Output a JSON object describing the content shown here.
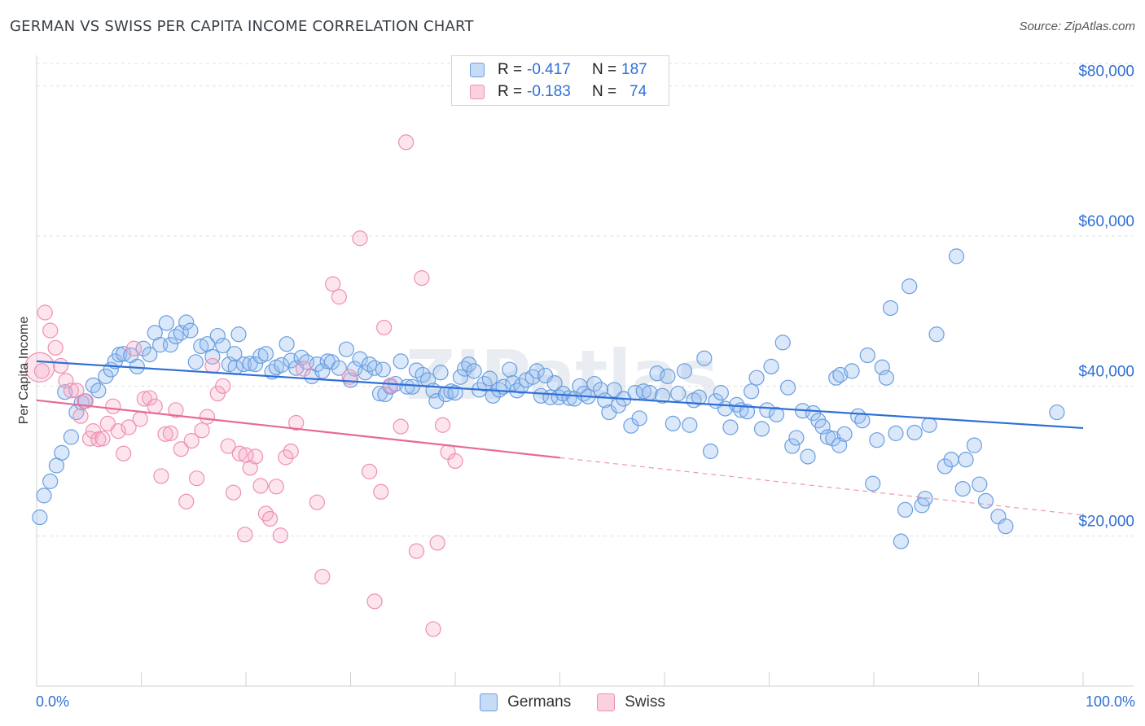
{
  "title": "GERMAN VS SWISS PER CAPITA INCOME CORRELATION CHART",
  "source": "Source: ZipAtlas.com",
  "watermark": "ZIPatlas",
  "legend_stats": [
    {
      "r_label": "R =",
      "r_value": "-0.417",
      "n_label": "N =",
      "n_value": "187",
      "color": "#6a9ee0"
    },
    {
      "r_label": "R =",
      "r_value": "-0.183",
      "n_label": "N =",
      "n_value": "74",
      "color": "#f08fb0"
    }
  ],
  "legend_series": [
    {
      "name": "Germans",
      "color": "#6a9ee0"
    },
    {
      "name": "Swiss",
      "color": "#f08fb0"
    }
  ],
  "x_axis": {
    "left_label": "0.0%",
    "right_label": "100.0%"
  },
  "chart_data": {
    "type": "scatter",
    "xlabel": "",
    "ylabel": "Per Capita Income",
    "xlim": [
      0,
      100
    ],
    "ylim": [
      0,
      83000
    ],
    "y_ticks": [
      {
        "value": 20000,
        "label": "$20,000"
      },
      {
        "value": 40000,
        "label": "$40,000"
      },
      {
        "value": 60000,
        "label": "$60,000"
      },
      {
        "value": 80000,
        "label": "$80,000"
      }
    ],
    "grid": true,
    "legend": "top-center",
    "series": [
      {
        "name": "Germans",
        "color": "#6a9ee0",
        "trend": {
          "x": [
            0,
            100
          ],
          "y": [
            43300,
            34400
          ],
          "dashed_from": null
        },
        "points": [
          [
            0.3,
            22500
          ],
          [
            0.7,
            25400
          ],
          [
            1.3,
            27300
          ],
          [
            1.9,
            29400
          ],
          [
            2.4,
            31100
          ],
          [
            2.7,
            39200
          ],
          [
            3.3,
            33200
          ],
          [
            3.8,
            36500
          ],
          [
            4.3,
            37800
          ],
          [
            4.6,
            38000
          ],
          [
            5.4,
            40100
          ],
          [
            5.9,
            39400
          ],
          [
            6.6,
            41300
          ],
          [
            7.1,
            42200
          ],
          [
            7.5,
            43300
          ],
          [
            7.9,
            44200
          ],
          [
            8.3,
            44300
          ],
          [
            9.0,
            44100
          ],
          [
            9.6,
            42600
          ],
          [
            10.2,
            45000
          ],
          [
            10.8,
            44200
          ],
          [
            11.3,
            47100
          ],
          [
            11.8,
            45500
          ],
          [
            12.4,
            48400
          ],
          [
            12.8,
            45500
          ],
          [
            13.3,
            46600
          ],
          [
            13.8,
            47100
          ],
          [
            14.3,
            48500
          ],
          [
            14.7,
            47400
          ],
          [
            15.2,
            43200
          ],
          [
            15.7,
            45300
          ],
          [
            16.3,
            45600
          ],
          [
            16.8,
            43900
          ],
          [
            17.3,
            46700
          ],
          [
            17.8,
            45400
          ],
          [
            18.4,
            42900
          ],
          [
            18.9,
            44300
          ],
          [
            19.0,
            42500
          ],
          [
            19.3,
            46900
          ],
          [
            19.8,
            42900
          ],
          [
            20.4,
            43000
          ],
          [
            20.9,
            42900
          ],
          [
            21.4,
            44000
          ],
          [
            21.9,
            44300
          ],
          [
            22.5,
            41900
          ],
          [
            22.9,
            42500
          ],
          [
            23.4,
            42800
          ],
          [
            23.9,
            45600
          ],
          [
            24.3,
            43400
          ],
          [
            24.8,
            42400
          ],
          [
            25.3,
            43800
          ],
          [
            25.8,
            43200
          ],
          [
            26.3,
            41300
          ],
          [
            26.8,
            42900
          ],
          [
            27.3,
            42000
          ],
          [
            27.8,
            43300
          ],
          [
            28.2,
            43200
          ],
          [
            28.9,
            42400
          ],
          [
            29.6,
            44900
          ],
          [
            30.0,
            40800
          ],
          [
            30.4,
            42300
          ],
          [
            30.9,
            43600
          ],
          [
            31.4,
            41800
          ],
          [
            31.8,
            42900
          ],
          [
            32.3,
            42400
          ],
          [
            32.8,
            39000
          ],
          [
            33.1,
            42200
          ],
          [
            33.3,
            38900
          ],
          [
            33.8,
            39900
          ],
          [
            34.3,
            40300
          ],
          [
            34.8,
            43300
          ],
          [
            35.4,
            39900
          ],
          [
            35.9,
            39900
          ],
          [
            36.3,
            42100
          ],
          [
            36.9,
            41500
          ],
          [
            37.4,
            40800
          ],
          [
            37.9,
            39400
          ],
          [
            38.2,
            38000
          ],
          [
            38.6,
            41800
          ],
          [
            39.1,
            38900
          ],
          [
            39.6,
            39300
          ],
          [
            40.0,
            39100
          ],
          [
            40.5,
            41200
          ],
          [
            40.9,
            42300
          ],
          [
            41.3,
            42900
          ],
          [
            41.8,
            42000
          ],
          [
            42.3,
            39500
          ],
          [
            42.8,
            40300
          ],
          [
            43.3,
            41000
          ],
          [
            43.6,
            38700
          ],
          [
            44.2,
            39500
          ],
          [
            44.6,
            39900
          ],
          [
            45.2,
            42200
          ],
          [
            45.5,
            40400
          ],
          [
            45.9,
            39400
          ],
          [
            46.3,
            40000
          ],
          [
            46.8,
            40800
          ],
          [
            47.4,
            41200
          ],
          [
            47.8,
            42000
          ],
          [
            48.2,
            38700
          ],
          [
            48.6,
            41400
          ],
          [
            49.1,
            38500
          ],
          [
            49.5,
            40400
          ],
          [
            49.9,
            38500
          ],
          [
            50.3,
            39000
          ],
          [
            50.9,
            38400
          ],
          [
            51.4,
            38300
          ],
          [
            51.9,
            40000
          ],
          [
            52.3,
            39000
          ],
          [
            52.7,
            38600
          ],
          [
            53.3,
            40300
          ],
          [
            53.9,
            39500
          ],
          [
            54.3,
            38100
          ],
          [
            54.7,
            36500
          ],
          [
            55.2,
            39500
          ],
          [
            55.6,
            37400
          ],
          [
            56.1,
            38300
          ],
          [
            56.8,
            34700
          ],
          [
            57.2,
            39100
          ],
          [
            57.6,
            35700
          ],
          [
            58.0,
            39300
          ],
          [
            58.6,
            39100
          ],
          [
            59.3,
            41700
          ],
          [
            59.8,
            38700
          ],
          [
            60.3,
            41300
          ],
          [
            60.8,
            35000
          ],
          [
            61.3,
            39000
          ],
          [
            61.9,
            42000
          ],
          [
            62.4,
            34800
          ],
          [
            62.8,
            38100
          ],
          [
            63.3,
            38500
          ],
          [
            63.8,
            43700
          ],
          [
            64.4,
            31300
          ],
          [
            64.9,
            38000
          ],
          [
            65.4,
            39100
          ],
          [
            65.8,
            37000
          ],
          [
            66.3,
            34500
          ],
          [
            66.9,
            37500
          ],
          [
            67.3,
            36800
          ],
          [
            67.9,
            36600
          ],
          [
            68.3,
            39300
          ],
          [
            68.8,
            41100
          ],
          [
            69.3,
            34300
          ],
          [
            69.8,
            36800
          ],
          [
            70.2,
            42600
          ],
          [
            70.7,
            36200
          ],
          [
            71.3,
            45800
          ],
          [
            71.8,
            39800
          ],
          [
            72.2,
            32000
          ],
          [
            72.6,
            33100
          ],
          [
            73.2,
            36700
          ],
          [
            73.7,
            30600
          ],
          [
            74.2,
            36400
          ],
          [
            74.7,
            35400
          ],
          [
            75.1,
            34600
          ],
          [
            75.6,
            33200
          ],
          [
            76.1,
            33000
          ],
          [
            76.4,
            41100
          ],
          [
            76.7,
            32100
          ],
          [
            76.8,
            41500
          ],
          [
            77.2,
            33600
          ],
          [
            77.9,
            42000
          ],
          [
            78.5,
            36000
          ],
          [
            78.9,
            35400
          ],
          [
            79.4,
            44100
          ],
          [
            79.9,
            27000
          ],
          [
            80.3,
            32800
          ],
          [
            80.8,
            42500
          ],
          [
            81.2,
            41100
          ],
          [
            81.6,
            50400
          ],
          [
            82.1,
            33700
          ],
          [
            82.6,
            19300
          ],
          [
            83.0,
            23500
          ],
          [
            83.4,
            53300
          ],
          [
            83.9,
            33800
          ],
          [
            84.6,
            24100
          ],
          [
            84.9,
            25000
          ],
          [
            85.3,
            34800
          ],
          [
            86.0,
            46900
          ],
          [
            86.8,
            29300
          ],
          [
            87.4,
            30200
          ],
          [
            87.9,
            57300
          ],
          [
            88.5,
            26300
          ],
          [
            88.8,
            30200
          ],
          [
            89.6,
            32100
          ],
          [
            90.1,
            26900
          ],
          [
            90.7,
            24700
          ],
          [
            91.9,
            22600
          ],
          [
            92.6,
            21300
          ],
          [
            97.5,
            36500
          ]
        ]
      },
      {
        "name": "Swiss",
        "color": "#f08fb0",
        "trend": {
          "x": [
            0,
            100
          ],
          "y": [
            38100,
            22800
          ],
          "dashed_from": 50
        },
        "points": [
          [
            0.5,
            42000
          ],
          [
            0.8,
            49800
          ],
          [
            1.3,
            47400
          ],
          [
            1.8,
            45100
          ],
          [
            2.3,
            42700
          ],
          [
            2.8,
            40700
          ],
          [
            3.3,
            39400
          ],
          [
            3.8,
            39400
          ],
          [
            4.2,
            36000
          ],
          [
            4.7,
            38000
          ],
          [
            5.1,
            33000
          ],
          [
            5.4,
            34000
          ],
          [
            5.9,
            32900
          ],
          [
            6.3,
            33000
          ],
          [
            6.8,
            35000
          ],
          [
            7.3,
            37300
          ],
          [
            7.8,
            34000
          ],
          [
            8.3,
            31000
          ],
          [
            8.8,
            34500
          ],
          [
            9.3,
            45000
          ],
          [
            9.9,
            35600
          ],
          [
            10.3,
            38300
          ],
          [
            10.8,
            38400
          ],
          [
            11.3,
            37300
          ],
          [
            11.9,
            28000
          ],
          [
            12.3,
            33600
          ],
          [
            12.8,
            33700
          ],
          [
            13.3,
            36800
          ],
          [
            13.8,
            31600
          ],
          [
            14.3,
            24600
          ],
          [
            14.8,
            32700
          ],
          [
            15.3,
            27700
          ],
          [
            15.8,
            34100
          ],
          [
            16.3,
            35900
          ],
          [
            16.8,
            42700
          ],
          [
            17.3,
            39000
          ],
          [
            17.8,
            40000
          ],
          [
            18.3,
            32000
          ],
          [
            18.8,
            25800
          ],
          [
            19.4,
            31000
          ],
          [
            19.9,
            20200
          ],
          [
            20.4,
            29100
          ],
          [
            20.9,
            30600
          ],
          [
            21.4,
            26700
          ],
          [
            21.9,
            23000
          ],
          [
            22.3,
            22300
          ],
          [
            22.9,
            26600
          ],
          [
            23.3,
            20100
          ],
          [
            23.8,
            30500
          ],
          [
            24.3,
            31300
          ],
          [
            24.8,
            35100
          ],
          [
            25.5,
            42300
          ],
          [
            26.8,
            24500
          ],
          [
            27.3,
            14600
          ],
          [
            28.3,
            53600
          ],
          [
            28.9,
            51900
          ],
          [
            29.9,
            41200
          ],
          [
            30.9,
            59700
          ],
          [
            31.8,
            28600
          ],
          [
            32.3,
            11300
          ],
          [
            32.9,
            25900
          ],
          [
            33.2,
            47800
          ],
          [
            33.8,
            40100
          ],
          [
            34.8,
            34600
          ],
          [
            35.3,
            72500
          ],
          [
            36.3,
            18000
          ],
          [
            36.8,
            54400
          ],
          [
            37.9,
            7600
          ],
          [
            38.3,
            19100
          ],
          [
            38.8,
            34800
          ],
          [
            39.3,
            31200
          ],
          [
            0.3,
            42500
          ],
          [
            40.0,
            30000
          ],
          [
            20.0,
            30800
          ]
        ]
      }
    ]
  }
}
